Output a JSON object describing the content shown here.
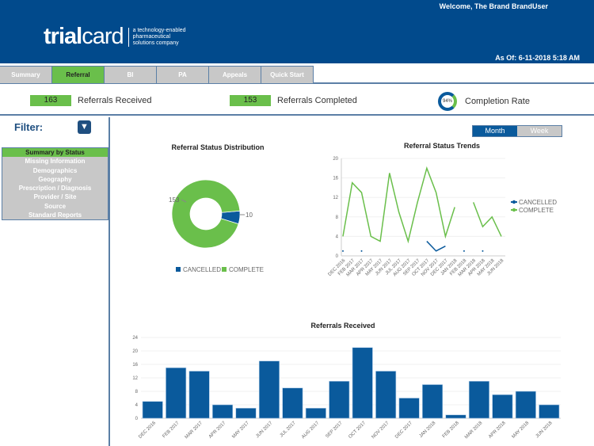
{
  "header": {
    "welcome": "Welcome, The Brand BrandUser",
    "as_of": "As Of: 6-11-2018 5:18 AM",
    "logo_bold": "trial",
    "logo_light": "card",
    "tagline": [
      "a technology-enabled",
      "pharmaceutical",
      "solutions company"
    ]
  },
  "tabs": [
    {
      "label": "Summary"
    },
    {
      "label": "Referral",
      "active": true
    },
    {
      "label": "BI"
    },
    {
      "label": "PA"
    },
    {
      "label": "Appeals"
    },
    {
      "label": "Quick Start"
    }
  ],
  "stats": {
    "received": {
      "value": "163",
      "label": "Referrals Received"
    },
    "completed": {
      "value": "153",
      "label": "Referrals Completed"
    },
    "rate": {
      "value": "94%",
      "label": "Completion Rate"
    }
  },
  "sidebar": {
    "filter_label": "Filter:",
    "filter_icon": "funnel-icon",
    "items": [
      {
        "label": "Summary by Status",
        "active": true
      },
      {
        "label": "Missing Information"
      },
      {
        "label": "Demographics"
      },
      {
        "label": "Geography"
      },
      {
        "label": "Prescription / Diagnosis"
      },
      {
        "label": "Provider / Site"
      },
      {
        "label": "Source"
      },
      {
        "label": "Standard Reports"
      }
    ]
  },
  "toggle": {
    "month": "Month",
    "week": "Week",
    "selected": "Month"
  },
  "colors": {
    "blue": "#0a5a9c",
    "green": "#6abf4b",
    "header": "#014a8c"
  },
  "chart_data": [
    {
      "type": "pie",
      "title": "Referral Status Distribution",
      "donut": true,
      "slices": [
        {
          "name": "CANCELLED",
          "value": 10,
          "color": "#0a5a9c"
        },
        {
          "name": "COMPLETE",
          "value": 153,
          "color": "#6abf4b"
        }
      ],
      "legend": "bottom"
    },
    {
      "type": "line",
      "title": "Referral Status Trends",
      "categories": [
        "DEC 2016",
        "FEB 2017",
        "MAR 2017",
        "APR 2017",
        "MAY 2017",
        "JUN 2017",
        "JUL 2017",
        "AUG 2017",
        "SEP 2017",
        "OCT 2017",
        "NOV 2017",
        "DEC 2017",
        "JAN 2018",
        "FEB 2018",
        "MAR 2018",
        "APR 2018",
        "MAY 2018",
        "JUN 2018"
      ],
      "ylim": [
        0,
        20
      ],
      "yticks": [
        0,
        4,
        8,
        12,
        16,
        20
      ],
      "legend": "right",
      "series": [
        {
          "name": "CANCELLED",
          "color": "#0a5a9c",
          "values": [
            1,
            null,
            1,
            null,
            null,
            null,
            null,
            null,
            null,
            3,
            1,
            2,
            null,
            1,
            null,
            1,
            null,
            null
          ]
        },
        {
          "name": "COMPLETE",
          "color": "#6abf4b",
          "values": [
            4,
            15,
            13,
            4,
            3,
            17,
            9,
            3,
            11,
            18,
            13,
            4,
            10,
            null,
            11,
            6,
            8,
            4
          ]
        }
      ]
    },
    {
      "type": "bar",
      "title": "Referrals Received",
      "categories": [
        "DEC 2016",
        "FEB 2017",
        "MAR 2017",
        "APR 2017",
        "MAY 2017",
        "JUN 2017",
        "JUL 2017",
        "AUG 2017",
        "SEP 2017",
        "OCT 2017",
        "NOV 2017",
        "DEC 2017",
        "JAN 2018",
        "FEB 2018",
        "MAR 2018",
        "APR 2018",
        "MAY 2018",
        "JUN 2018"
      ],
      "values": [
        5,
        15,
        14,
        4,
        3,
        17,
        9,
        3,
        11,
        21,
        14,
        6,
        10,
        1,
        11,
        7,
        8,
        4
      ],
      "ylim": [
        0,
        24
      ],
      "yticks": [
        0,
        4,
        8,
        12,
        16,
        20,
        24
      ],
      "color": "#0a5a9c"
    }
  ]
}
